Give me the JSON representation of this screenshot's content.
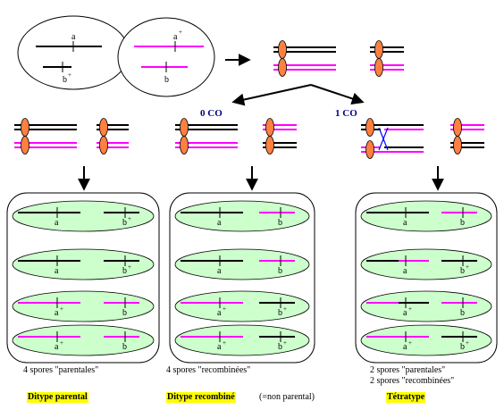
{
  "genes": {
    "a": "a",
    "b": "b",
    "plus": "+"
  },
  "crossover": {
    "zero": "0 CO",
    "one": "1 CO"
  },
  "colors": {
    "black_chromosome": "#000000",
    "magenta_chromosome": "#ff00ff",
    "centromere": "#ff8040",
    "spore": "#ccffcc",
    "crossover_x": "#0000ff",
    "highlight": "#ffff00"
  },
  "panels": [
    {
      "caption_lines": [
        "4 spores \"parentales\""
      ],
      "title": "Ditype parental",
      "title_note": ""
    },
    {
      "caption_lines": [
        "4 spores \"recombinées\""
      ],
      "title": "Ditype recombiné",
      "title_note": "(=non parental)"
    },
    {
      "caption_lines": [
        "2 spores    \"parentales\"",
        "2 spores \"recombinées\""
      ],
      "title": "Tétratype",
      "title_note": ""
    }
  ]
}
